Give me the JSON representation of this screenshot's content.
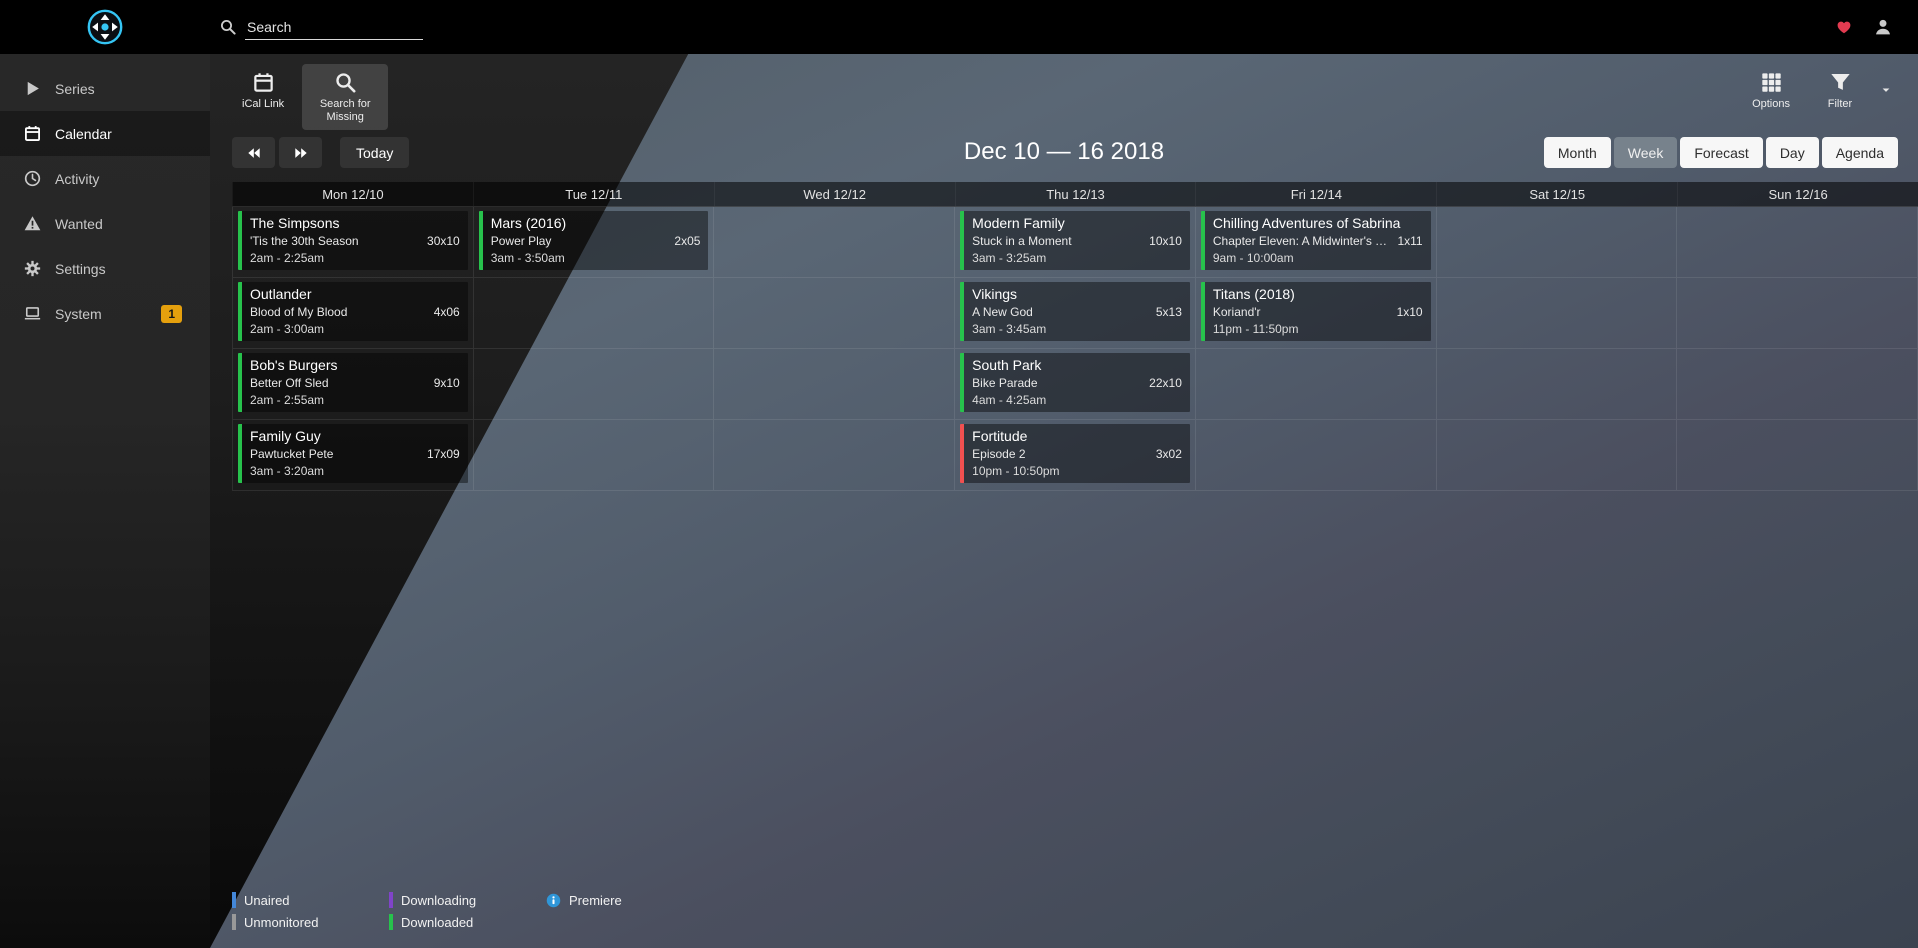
{
  "topbar": {
    "search_placeholder": "Search"
  },
  "sidebar": {
    "items": [
      {
        "label": "Series",
        "icon": "play"
      },
      {
        "label": "Calendar",
        "icon": "calendar",
        "active": true
      },
      {
        "label": "Activity",
        "icon": "clock"
      },
      {
        "label": "Wanted",
        "icon": "warning"
      },
      {
        "label": "Settings",
        "icon": "gears"
      },
      {
        "label": "System",
        "icon": "laptop",
        "badge": "1"
      }
    ]
  },
  "toolbar": {
    "left": [
      {
        "name": "ical-link-button",
        "label": "iCal Link",
        "icon": "calendar"
      },
      {
        "name": "search-missing-button",
        "label": "Search for Missing",
        "icon": "search",
        "active": true
      }
    ],
    "right": [
      {
        "name": "options-button",
        "label": "Options",
        "icon": "grid"
      },
      {
        "name": "filter-button",
        "label": "Filter",
        "icon": "filter",
        "caret": true
      }
    ]
  },
  "calendar_nav": {
    "today_label": "Today",
    "title": "Dec 10 — 16 2018",
    "views": [
      {
        "label": "Month"
      },
      {
        "label": "Week",
        "active": true
      },
      {
        "label": "Forecast"
      },
      {
        "label": "Day"
      },
      {
        "label": "Agenda"
      }
    ]
  },
  "calendar": {
    "days": [
      "Mon 12/10",
      "Tue 12/11",
      "Wed 12/12",
      "Thu 12/13",
      "Fri 12/14",
      "Sat 12/15",
      "Sun 12/16"
    ],
    "rows": 4,
    "events": [
      {
        "day": 0,
        "row": 0,
        "series": "The Simpsons",
        "episode": "'Tis the 30th Season",
        "number": "30x10",
        "time": "2am - 2:25am",
        "status": "downloaded"
      },
      {
        "day": 0,
        "row": 1,
        "series": "Outlander",
        "episode": "Blood of My Blood",
        "number": "4x06",
        "time": "2am - 3:00am",
        "status": "downloaded"
      },
      {
        "day": 0,
        "row": 2,
        "series": "Bob's Burgers",
        "episode": "Better Off Sled",
        "number": "9x10",
        "time": "2am - 2:55am",
        "status": "downloaded"
      },
      {
        "day": 0,
        "row": 3,
        "series": "Family Guy",
        "episode": "Pawtucket Pete",
        "number": "17x09",
        "time": "3am - 3:20am",
        "status": "downloaded"
      },
      {
        "day": 1,
        "row": 0,
        "series": "Mars (2016)",
        "episode": "Power Play",
        "number": "2x05",
        "time": "3am - 3:50am",
        "status": "downloaded"
      },
      {
        "day": 3,
        "row": 0,
        "series": "Modern Family",
        "episode": "Stuck in a Moment",
        "number": "10x10",
        "time": "3am - 3:25am",
        "status": "downloaded"
      },
      {
        "day": 3,
        "row": 1,
        "series": "Vikings",
        "episode": "A New God",
        "number": "5x13",
        "time": "3am - 3:45am",
        "status": "downloaded"
      },
      {
        "day": 3,
        "row": 2,
        "series": "South Park",
        "episode": "Bike Parade",
        "number": "22x10",
        "time": "4am - 4:25am",
        "status": "downloaded"
      },
      {
        "day": 3,
        "row": 3,
        "series": "Fortitude",
        "episode": "Episode 2",
        "number": "3x02",
        "time": "10pm - 10:50pm",
        "status": "missing"
      },
      {
        "day": 4,
        "row": 0,
        "series": "Chilling Adventures of Sabrina",
        "episode": "Chapter Eleven: A Midwinter's Tale",
        "number": "1x11",
        "time": "9am - 10:00am",
        "status": "downloaded"
      },
      {
        "day": 4,
        "row": 1,
        "series": "Titans (2018)",
        "episode": "Koriand'r",
        "number": "1x10",
        "time": "11pm - 11:50pm",
        "status": "downloaded"
      }
    ]
  },
  "status_colors": {
    "downloaded": "#27c24c",
    "missing": "#f05050",
    "unaired": "#4487d8",
    "downloading": "#8044c9",
    "unmonitored": "#999999"
  },
  "legend": {
    "rows": [
      [
        {
          "label": "Unaired",
          "color": "#4487d8"
        },
        {
          "label": "Downloading",
          "color": "#8044c9"
        },
        {
          "label": "Premiere",
          "icon": "info"
        }
      ],
      [
        {
          "label": "Unmonitored",
          "color": "#999999"
        },
        {
          "label": "Downloaded",
          "color": "#27c24c"
        }
      ]
    ]
  }
}
